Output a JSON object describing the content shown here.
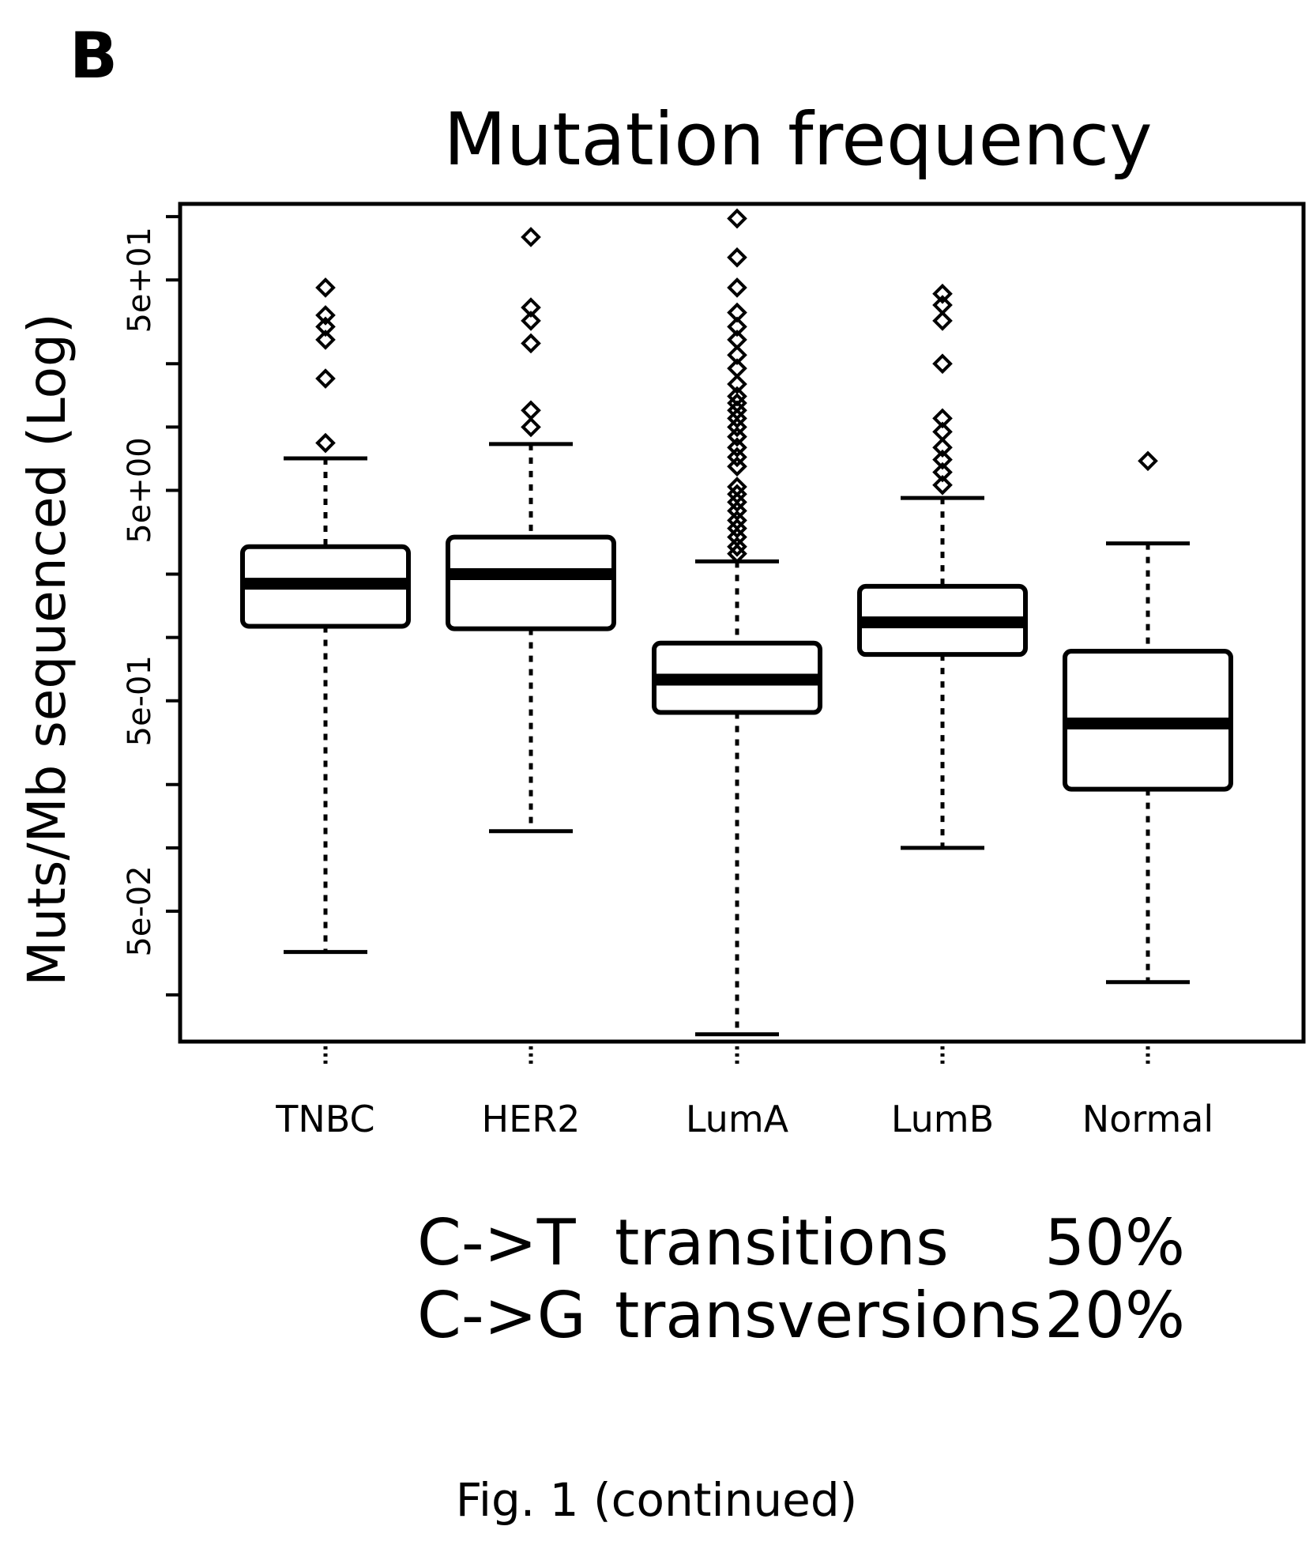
{
  "panel_label": "B",
  "caption": "Fig. 1 (continued)",
  "notes": [
    {
      "label": "C->T",
      "desc": "transitions",
      "pct": "50%"
    },
    {
      "label": "C->G",
      "desc": "transversions",
      "pct": "20%"
    }
  ],
  "chart_data": {
    "type": "box",
    "title": "Mutation frequency",
    "ylabel": "Muts/Mb sequenced (Log)",
    "yscale": "log",
    "ylim": [
      0.012,
      115
    ],
    "yticks": [
      {
        "value": 0.05,
        "label": "5e-02"
      },
      {
        "value": 0.5,
        "label": "5e-01"
      },
      {
        "value": 5,
        "label": "5e+00"
      },
      {
        "value": 50,
        "label": "5e+01"
      }
    ],
    "minor_ticks": [
      0.02,
      0.1,
      0.2,
      1,
      2,
      10,
      20,
      100
    ],
    "grid": false,
    "categories": [
      "TNBC",
      "HER2",
      "LumA",
      "LumB",
      "Normal"
    ],
    "boxes": [
      {
        "name": "TNBC",
        "whisker_low": 0.032,
        "q1": 1.13,
        "median": 1.8,
        "q3": 2.7,
        "whisker_high": 7.1,
        "outliers": [
          8.4,
          17,
          26,
          30,
          34,
          46
        ]
      },
      {
        "name": "HER2",
        "whisker_low": 0.12,
        "q1": 1.1,
        "median": 2.0,
        "q3": 3.0,
        "whisker_high": 8.3,
        "outliers": [
          10,
          12,
          25,
          32,
          37,
          80
        ]
      },
      {
        "name": "LumA",
        "whisker_low": 0.013,
        "q1": 0.44,
        "median": 0.63,
        "q3": 0.94,
        "whisker_high": 2.3,
        "outliers": [
          2.5,
          2.7,
          3,
          3.3,
          3.6,
          4,
          4.4,
          4.8,
          5.2,
          6.5,
          7.2,
          8,
          9,
          10,
          11,
          12,
          13,
          14,
          16,
          19,
          22,
          26,
          30,
          35,
          46,
          64,
          98
        ]
      },
      {
        "name": "LumB",
        "whisker_low": 0.1,
        "q1": 0.83,
        "median": 1.18,
        "q3": 1.75,
        "whisker_high": 4.6,
        "outliers": [
          5.3,
          6.1,
          7,
          8,
          9.5,
          11,
          20,
          32,
          38,
          43
        ]
      },
      {
        "name": "Normal",
        "whisker_low": 0.023,
        "q1": 0.19,
        "median": 0.39,
        "q3": 0.86,
        "whisker_high": 2.8,
        "outliers": [
          6.9
        ]
      }
    ]
  }
}
